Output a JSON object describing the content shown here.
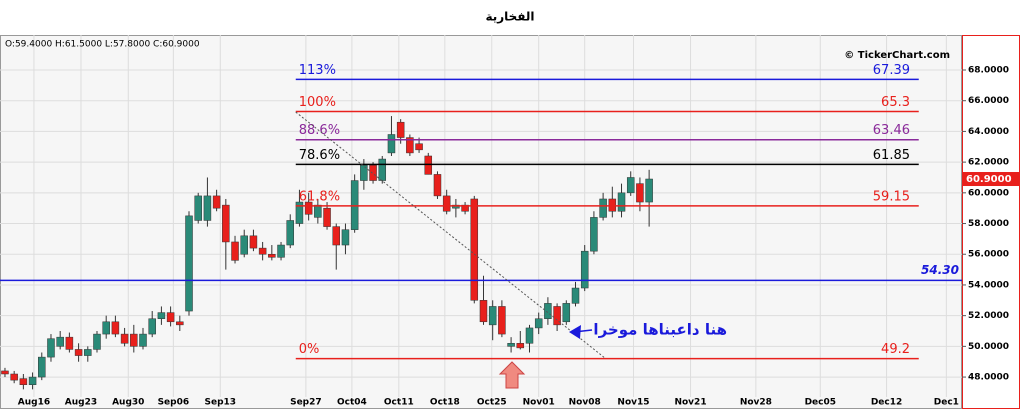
{
  "title": "الفخارية",
  "ohlc_text": "O:59.4000  H:61.5000  L:57.8000  C:60.9000",
  "watermark": "© TickerChart.com",
  "chart_data": {
    "type": "candlestick",
    "open": [
      48.4,
      48.2,
      47.9,
      47.5,
      48.0,
      49.3,
      50.0,
      50.6,
      49.8,
      49.4,
      49.8,
      50.8,
      51.6,
      50.8,
      50.8,
      50.0,
      50.8,
      51.8,
      52.2,
      51.6,
      52.3,
      58.2,
      58.2,
      59.8,
      59.2,
      56.8,
      56.0,
      57.2,
      56.4,
      56.0,
      55.8,
      56.6,
      58.0,
      59.4,
      58.4,
      59.0,
      57.8,
      56.6,
      57.6,
      60.8,
      61.8,
      60.8,
      62.6,
      64.6,
      63.6,
      63.2,
      62.4,
      61.2,
      59.8,
      59.0,
      59.2,
      59.6,
      53.0,
      51.4,
      52.6,
      50.0,
      50.2,
      50.2,
      51.2,
      51.8,
      52.6,
      51.6,
      52.8,
      53.8,
      56.2,
      58.4,
      59.6,
      58.8,
      60.0,
      60.6,
      59.4
    ],
    "high": [
      48.6,
      48.4,
      48.2,
      48.3,
      49.6,
      50.8,
      51.0,
      50.9,
      50.2,
      50.0,
      51.0,
      52.0,
      52.0,
      51.2,
      51.4,
      51.2,
      52.3,
      52.6,
      52.6,
      52.0,
      58.8,
      60.0,
      61.0,
      60.2,
      59.6,
      57.2,
      57.6,
      57.6,
      56.8,
      56.6,
      56.8,
      58.6,
      60.2,
      60.0,
      59.6,
      59.4,
      58.0,
      58.0,
      61.2,
      62.2,
      62.0,
      62.4,
      65.0,
      64.8,
      63.8,
      63.6,
      62.6,
      61.4,
      60.2,
      59.6,
      59.4,
      59.8,
      54.6,
      53.0,
      53.0,
      50.6,
      51.0,
      51.4,
      52.2,
      53.2,
      52.8,
      53.0,
      54.2,
      56.6,
      58.8,
      60.0,
      60.4,
      60.6,
      61.4,
      61.0,
      61.5
    ],
    "low": [
      48.0,
      47.6,
      47.2,
      47.2,
      47.8,
      49.0,
      49.8,
      49.6,
      49.0,
      49.0,
      49.6,
      50.5,
      50.6,
      50.0,
      49.6,
      49.8,
      50.6,
      51.4,
      51.3,
      51.0,
      52.0,
      58.0,
      57.8,
      58.8,
      55.0,
      55.4,
      55.8,
      56.2,
      55.6,
      55.6,
      55.6,
      56.4,
      57.8,
      58.2,
      58.0,
      57.6,
      55.0,
      56.0,
      57.4,
      60.2,
      60.6,
      60.6,
      62.4,
      63.2,
      62.4,
      62.6,
      61.2,
      59.6,
      58.6,
      58.4,
      58.6,
      52.8,
      51.4,
      50.4,
      50.6,
      49.6,
      49.8,
      49.6,
      50.8,
      51.4,
      51.0,
      51.4,
      52.6,
      53.6,
      56.0,
      58.2,
      58.4,
      58.4,
      59.8,
      58.8,
      57.8
    ],
    "close": [
      48.2,
      47.8,
      47.5,
      48.0,
      49.3,
      50.5,
      50.6,
      49.8,
      49.4,
      49.8,
      50.8,
      51.6,
      50.8,
      50.2,
      50.0,
      50.8,
      51.8,
      52.2,
      51.6,
      51.4,
      58.5,
      59.8,
      59.8,
      59.0,
      56.8,
      55.6,
      57.2,
      56.4,
      56.0,
      55.8,
      56.6,
      58.2,
      59.4,
      58.6,
      59.2,
      57.8,
      56.6,
      57.6,
      60.8,
      61.8,
      60.8,
      62.2,
      63.8,
      63.6,
      62.6,
      62.8,
      61.2,
      59.8,
      58.8,
      59.2,
      58.8,
      53.0,
      51.6,
      52.6,
      50.8,
      50.2,
      49.9,
      51.2,
      51.8,
      52.8,
      51.4,
      52.8,
      53.8,
      56.2,
      58.4,
      59.6,
      58.8,
      60.0,
      61.0,
      59.4,
      60.9
    ],
    "up_color": "#2a8a78",
    "down_color": "#e8201c",
    "xlim": [
      -0.54,
      104.0
    ],
    "xticks": [
      {
        "value": 3.15,
        "label": "Aug16"
      },
      {
        "value": 8.26,
        "label": "Aug23"
      },
      {
        "value": 13.4,
        "label": "Aug30"
      },
      {
        "value": 18.3,
        "label": "Sep06"
      },
      {
        "value": 23.4,
        "label": "Sep13"
      },
      {
        "value": 32.7,
        "label": "Sep27"
      },
      {
        "value": 37.7,
        "label": "Oct04"
      },
      {
        "value": 42.8,
        "label": "Oct11"
      },
      {
        "value": 47.8,
        "label": "Oct18"
      },
      {
        "value": 52.9,
        "label": "Oct25"
      },
      {
        "value": 58.0,
        "label": "Nov01"
      },
      {
        "value": 63.0,
        "label": "Nov08"
      },
      {
        "value": 68.3,
        "label": "Nov15"
      },
      {
        "value": 74.5,
        "label": "Nov21"
      },
      {
        "value": 81.6,
        "label": "Nov28"
      },
      {
        "value": 88.6,
        "label": "Dec05"
      },
      {
        "value": 95.8,
        "label": "Dec12"
      },
      {
        "value": 102.3,
        "label": "Dec1"
      }
    ],
    "ylim": [
      45.92,
      70.28
    ],
    "yticks": [
      {
        "value": 48,
        "label": "48.0000"
      },
      {
        "value": 50,
        "label": "50.0000"
      },
      {
        "value": 52,
        "label": "52.0000"
      },
      {
        "value": 54,
        "label": "54.0000"
      },
      {
        "value": 56,
        "label": "56.0000"
      },
      {
        "value": 58,
        "label": "58.0000"
      },
      {
        "value": 60,
        "label": "60.0000"
      },
      {
        "value": 62,
        "label": "62.0000"
      },
      {
        "value": 64,
        "label": "64.0000"
      },
      {
        "value": 66,
        "label": "66.0000"
      },
      {
        "value": 68,
        "label": "68.0000"
      }
    ],
    "grid": true,
    "fib_levels": [
      {
        "name": "113%",
        "value": 67.39,
        "color": "#1a1adb"
      },
      {
        "name": "100%",
        "value": 65.3,
        "color": "#e8201c"
      },
      {
        "name": "88.6%",
        "value": 63.46,
        "color": "#8a2a9a"
      },
      {
        "name": "78.6%",
        "value": 61.85,
        "color": "#000000"
      },
      {
        "name": "61.8%",
        "value": 59.15,
        "color": "#e8201c"
      },
      {
        "name": "0%",
        "value": 49.2,
        "color": "#e8201c"
      }
    ],
    "fib_x": [
      31.6,
      99.3
    ],
    "support": {
      "value": 54.3,
      "value_label": "54.30",
      "color": "#1a1adb"
    },
    "last_price": {
      "value": 60.9,
      "value_label": "60.9000"
    },
    "trendline": {
      "x": [
        31.6,
        65.2
      ],
      "y": [
        65.26,
        49.24
      ]
    },
    "annotation": "هنا داعبناها موخرا"
  }
}
